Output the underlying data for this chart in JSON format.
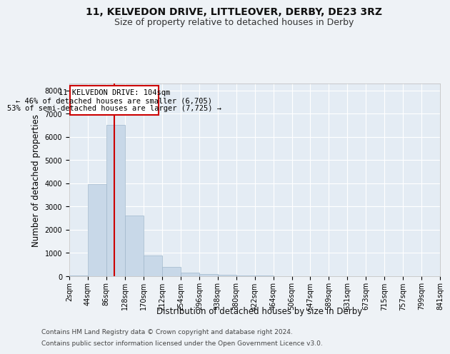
{
  "title1": "11, KELVEDON DRIVE, LITTLEOVER, DERBY, DE23 3RZ",
  "title2": "Size of property relative to detached houses in Derby",
  "xlabel": "Distribution of detached houses by size in Derby",
  "ylabel": "Number of detached properties",
  "bin_edges": [
    2,
    44,
    86,
    128,
    170,
    212,
    254,
    296,
    338,
    380,
    422,
    464,
    506,
    547,
    589,
    631,
    673,
    715,
    757,
    799,
    841
  ],
  "bin_labels": [
    "2sqm",
    "44sqm",
    "86sqm",
    "128sqm",
    "170sqm",
    "212sqm",
    "254sqm",
    "296sqm",
    "338sqm",
    "380sqm",
    "422sqm",
    "464sqm",
    "506sqm",
    "547sqm",
    "589sqm",
    "631sqm",
    "673sqm",
    "715sqm",
    "757sqm",
    "799sqm",
    "841sqm"
  ],
  "counts": [
    25,
    3980,
    6530,
    2600,
    900,
    390,
    145,
    95,
    50,
    45,
    20,
    15,
    10,
    5,
    5,
    3,
    2,
    2,
    1,
    1
  ],
  "bar_color": "#c8d8e8",
  "bar_edge_color": "#a0b8cc",
  "property_size": 104,
  "vline_color": "#cc0000",
  "annotation_line1": "11 KELVEDON DRIVE: 104sqm",
  "annotation_line2": "← 46% of detached houses are smaller (6,705)",
  "annotation_line3": "53% of semi-detached houses are larger (7,725) →",
  "annotation_box_color": "#ffffff",
  "annotation_box_edge_color": "#cc0000",
  "ylim": [
    0,
    8300
  ],
  "yticks": [
    0,
    1000,
    2000,
    3000,
    4000,
    5000,
    6000,
    7000,
    8000
  ],
  "footer1": "Contains HM Land Registry data © Crown copyright and database right 2024.",
  "footer2": "Contains public sector information licensed under the Open Government Licence v3.0.",
  "background_color": "#eef2f6",
  "plot_bg_color": "#e4ecf4",
  "grid_color": "#ffffff",
  "title1_fontsize": 10,
  "title2_fontsize": 9,
  "axis_label_fontsize": 8.5,
  "tick_fontsize": 7,
  "annotation_fontsize": 7.5,
  "footer_fontsize": 6.5
}
